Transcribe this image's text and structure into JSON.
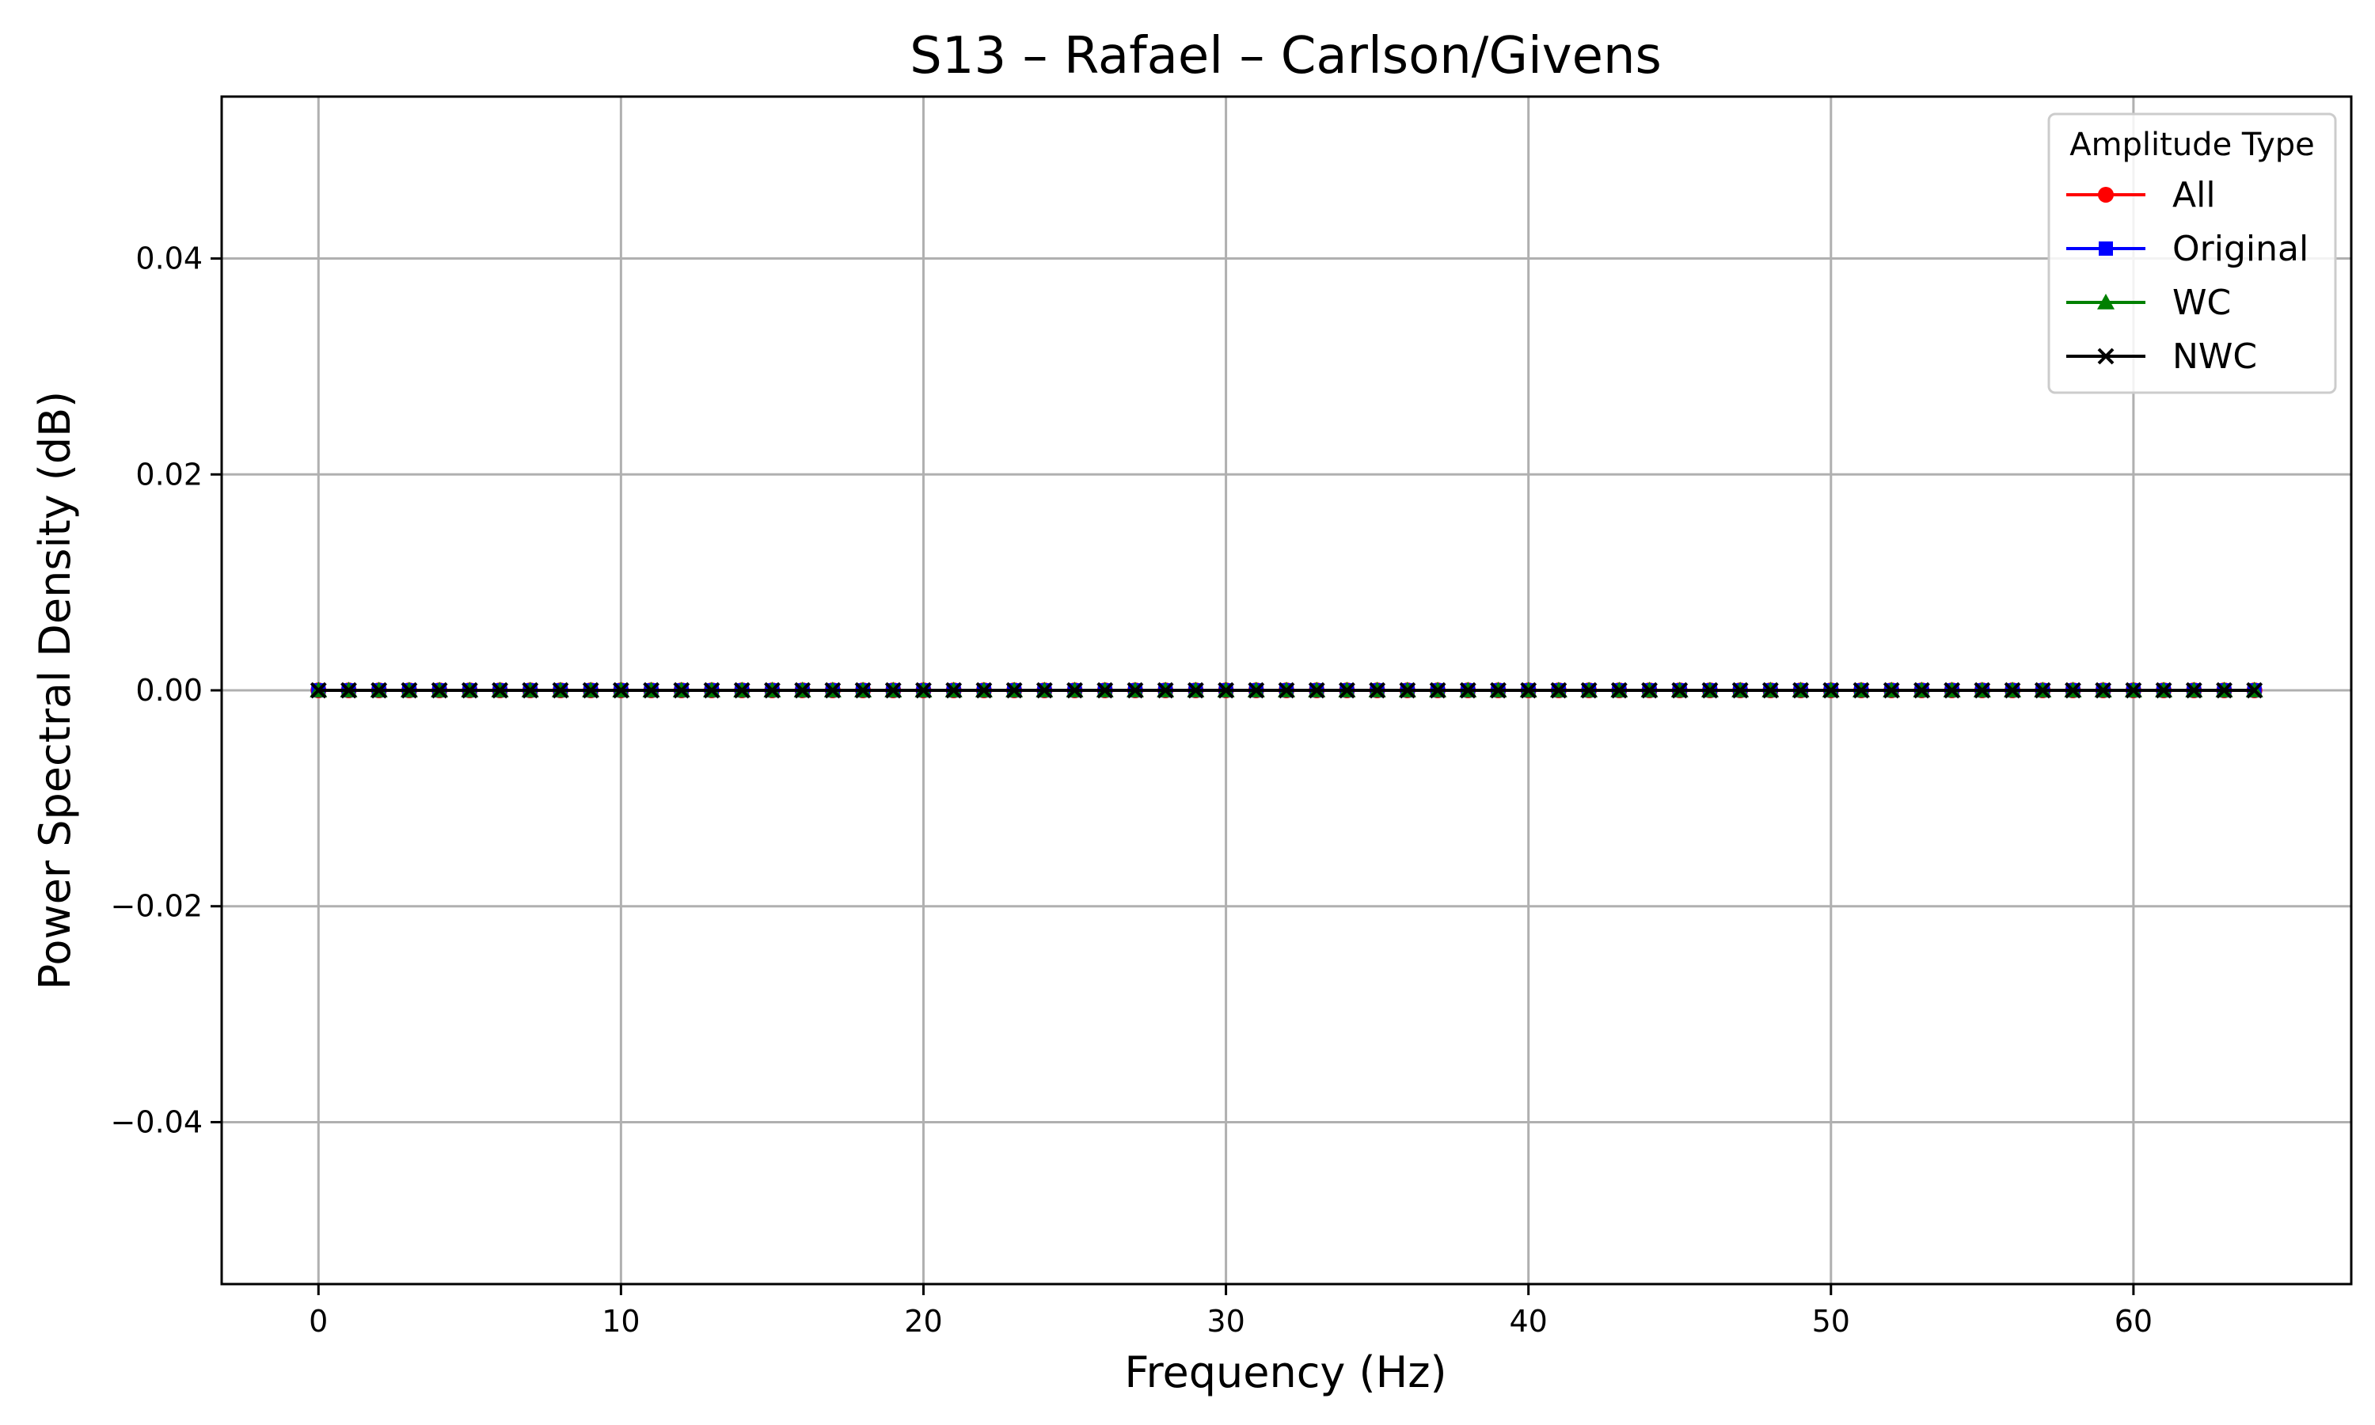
{
  "chart_data": {
    "type": "line",
    "title": "S13 – Rafael – Carlson/Givens",
    "xlabel": "Frequency (Hz)",
    "ylabel": "Power Spectral Density (dB)",
    "xlim": [
      -3.2,
      67.2
    ],
    "ylim": [
      -0.055,
      0.055
    ],
    "xticks": [
      0,
      10,
      20,
      30,
      40,
      50,
      60
    ],
    "xtick_labels": [
      "0",
      "10",
      "20",
      "30",
      "40",
      "50",
      "60"
    ],
    "yticks": [
      -0.04,
      -0.02,
      0.0,
      0.02,
      0.04
    ],
    "ytick_labels": [
      "−0.04",
      "−0.02",
      "0.00",
      "0.02",
      "0.04"
    ],
    "grid": true,
    "legend": {
      "title": "Amplitude Type",
      "placement": "top-right"
    },
    "x": [
      0,
      1,
      2,
      3,
      4,
      5,
      6,
      7,
      8,
      9,
      10,
      11,
      12,
      13,
      14,
      15,
      16,
      17,
      18,
      19,
      20,
      21,
      22,
      23,
      24,
      25,
      26,
      27,
      28,
      29,
      30,
      31,
      32,
      33,
      34,
      35,
      36,
      37,
      38,
      39,
      40,
      41,
      42,
      43,
      44,
      45,
      46,
      47,
      48,
      49,
      50,
      51,
      52,
      53,
      54,
      55,
      56,
      57,
      58,
      59,
      60,
      61,
      62,
      63,
      64
    ],
    "series": [
      {
        "name": "All",
        "color": "#ff0000",
        "marker": "circle",
        "values": [
          0,
          0,
          0,
          0,
          0,
          0,
          0,
          0,
          0,
          0,
          0,
          0,
          0,
          0,
          0,
          0,
          0,
          0,
          0,
          0,
          0,
          0,
          0,
          0,
          0,
          0,
          0,
          0,
          0,
          0,
          0,
          0,
          0,
          0,
          0,
          0,
          0,
          0,
          0,
          0,
          0,
          0,
          0,
          0,
          0,
          0,
          0,
          0,
          0,
          0,
          0,
          0,
          0,
          0,
          0,
          0,
          0,
          0,
          0,
          0,
          0,
          0,
          0,
          0,
          0
        ]
      },
      {
        "name": "Original",
        "color": "#0000ff",
        "marker": "square",
        "values": [
          0,
          0,
          0,
          0,
          0,
          0,
          0,
          0,
          0,
          0,
          0,
          0,
          0,
          0,
          0,
          0,
          0,
          0,
          0,
          0,
          0,
          0,
          0,
          0,
          0,
          0,
          0,
          0,
          0,
          0,
          0,
          0,
          0,
          0,
          0,
          0,
          0,
          0,
          0,
          0,
          0,
          0,
          0,
          0,
          0,
          0,
          0,
          0,
          0,
          0,
          0,
          0,
          0,
          0,
          0,
          0,
          0,
          0,
          0,
          0,
          0,
          0,
          0,
          0,
          0
        ]
      },
      {
        "name": "WC",
        "color": "#008000",
        "marker": "triangle",
        "values": [
          0,
          0,
          0,
          0,
          0,
          0,
          0,
          0,
          0,
          0,
          0,
          0,
          0,
          0,
          0,
          0,
          0,
          0,
          0,
          0,
          0,
          0,
          0,
          0,
          0,
          0,
          0,
          0,
          0,
          0,
          0,
          0,
          0,
          0,
          0,
          0,
          0,
          0,
          0,
          0,
          0,
          0,
          0,
          0,
          0,
          0,
          0,
          0,
          0,
          0,
          0,
          0,
          0,
          0,
          0,
          0,
          0,
          0,
          0,
          0,
          0,
          0,
          0,
          0,
          0
        ]
      },
      {
        "name": "NWC",
        "color": "#000000",
        "marker": "x",
        "values": [
          0,
          0,
          0,
          0,
          0,
          0,
          0,
          0,
          0,
          0,
          0,
          0,
          0,
          0,
          0,
          0,
          0,
          0,
          0,
          0,
          0,
          0,
          0,
          0,
          0,
          0,
          0,
          0,
          0,
          0,
          0,
          0,
          0,
          0,
          0,
          0,
          0,
          0,
          0,
          0,
          0,
          0,
          0,
          0,
          0,
          0,
          0,
          0,
          0,
          0,
          0,
          0,
          0,
          0,
          0,
          0,
          0,
          0,
          0,
          0,
          0,
          0,
          0,
          0,
          0
        ]
      }
    ]
  }
}
